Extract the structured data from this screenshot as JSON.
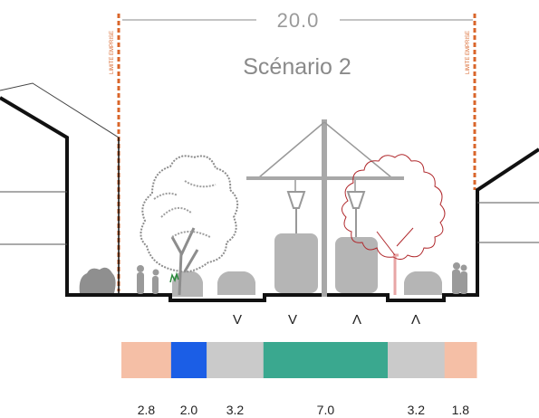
{
  "header": {
    "total_width": "20.0",
    "scenario_title": "Scénario 2",
    "limit_label": "LIMITE EMPRISE"
  },
  "lanes": [
    {
      "width": "2.8",
      "color": "#f5bfa6",
      "use": "sidewalk-left"
    },
    {
      "width": "2.0",
      "color": "#1b5ee6",
      "use": "cycle-track"
    },
    {
      "width": "3.2",
      "color": "#cacaca",
      "use": "car-lane-left"
    },
    {
      "width": "7.0",
      "color": "#3aa88f",
      "use": "tram-platform"
    },
    {
      "width": "3.2",
      "color": "#cacaca",
      "use": "car-lane-right"
    },
    {
      "width": "1.8",
      "color": "#f5bfa6",
      "use": "sidewalk-right"
    }
  ],
  "direction_arrows": [
    {
      "glyph": "V",
      "direction": "down"
    },
    {
      "glyph": "V",
      "direction": "down"
    },
    {
      "glyph": "Λ",
      "direction": "up"
    },
    {
      "glyph": "Λ",
      "direction": "up"
    }
  ],
  "colors": {
    "limit_line": "#d9662b",
    "building_outline": "#111111",
    "vehicle_fill": "#b5b5b5",
    "tree_new_outline": "#b0282c",
    "tree_existing": "#8d8d8d",
    "text_grey": "#888888"
  }
}
